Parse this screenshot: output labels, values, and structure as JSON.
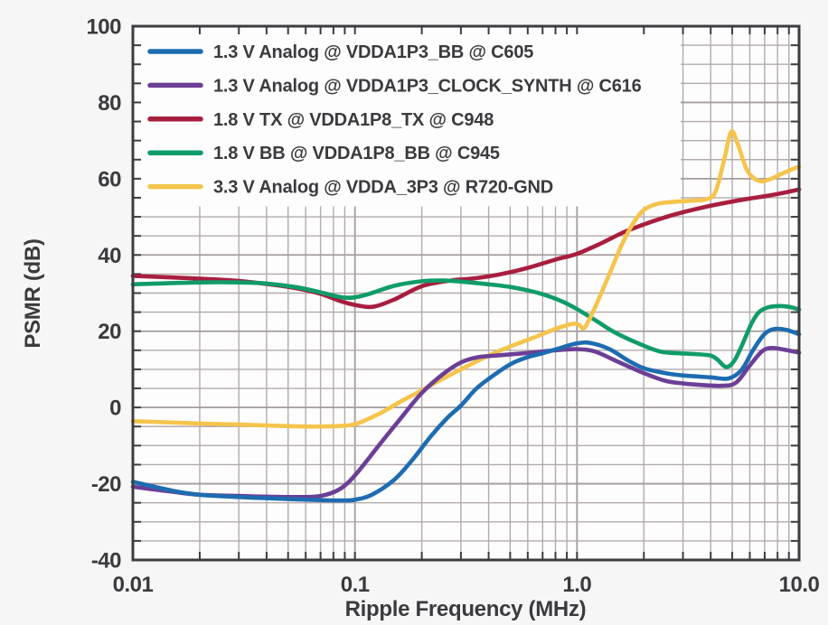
{
  "figure": {
    "background": "#f6f6f6",
    "plot_background": "#fdfdfd",
    "frame_color": "#3d3c40",
    "grid_minor_color": "#b3abab",
    "grid_major_color": "#a49c9c",
    "tick_color": "#3d3c40",
    "text_color": "#3b3a3e"
  },
  "chart_data": {
    "type": "line",
    "title": "",
    "xlabel": "Ripple Frequency (MHz)",
    "ylabel": "PSMR (dB)",
    "x_scale": "log",
    "y_scale": "linear",
    "xlim": [
      0.01,
      10
    ],
    "ylim": [
      -40,
      100
    ],
    "x_ticks": [
      {
        "value": 0.01,
        "label": "0.01"
      },
      {
        "value": 0.1,
        "label": "0.1"
      },
      {
        "value": 1.0,
        "label": "1.0"
      },
      {
        "value": 10.0,
        "label": "10.0"
      }
    ],
    "y_ticks": [
      {
        "value": 100,
        "label": "100"
      },
      {
        "value": 80,
        "label": "80"
      },
      {
        "value": 60,
        "label": "60"
      },
      {
        "value": 40,
        "label": "40"
      },
      {
        "value": 20,
        "label": "20"
      },
      {
        "value": 0,
        "label": "0"
      },
      {
        "value": -20,
        "label": "-20"
      },
      {
        "value": -40,
        "label": "-40"
      }
    ],
    "y_minor_step": 5,
    "grid": "major and minor gridlines, both axes",
    "legend_position": "top-left-inside",
    "series": [
      {
        "key": "vdda1p3_bb",
        "name": "1.3 V Analog @ VDDA1P3_BB @ C605",
        "color": "#1d6cb1",
        "points": [
          [
            0.01,
            -19.5
          ],
          [
            0.015,
            -21.8
          ],
          [
            0.02,
            -22.9
          ],
          [
            0.03,
            -23.5
          ],
          [
            0.04,
            -23.8
          ],
          [
            0.055,
            -24.1
          ],
          [
            0.07,
            -24.3
          ],
          [
            0.085,
            -24.4
          ],
          [
            0.1,
            -24.2
          ],
          [
            0.12,
            -22.8
          ],
          [
            0.15,
            -19.0
          ],
          [
            0.18,
            -14.0
          ],
          [
            0.22,
            -7.5
          ],
          [
            0.26,
            -2.8
          ],
          [
            0.3,
            0.5
          ],
          [
            0.35,
            4.8
          ],
          [
            0.4,
            7.5
          ],
          [
            0.5,
            11.3
          ],
          [
            0.6,
            13.2
          ],
          [
            0.7,
            14.2
          ],
          [
            0.85,
            15.7
          ],
          [
            1.0,
            16.8
          ],
          [
            1.15,
            16.9
          ],
          [
            1.4,
            15.3
          ],
          [
            1.7,
            12.3
          ],
          [
            2.0,
            10.3
          ],
          [
            2.5,
            9.0
          ],
          [
            3.0,
            8.4
          ],
          [
            4.0,
            7.9
          ],
          [
            4.8,
            7.6
          ],
          [
            5.5,
            9.8
          ],
          [
            6.2,
            15.0
          ],
          [
            7.0,
            19.3
          ],
          [
            7.8,
            20.6
          ],
          [
            8.8,
            20.3
          ],
          [
            10,
            19.2
          ]
        ]
      },
      {
        "key": "vdda1p3_clock_synth",
        "name": "1.3 V Analog @ VDDA1P3_CLOCK_SYNTH @ C616",
        "color": "#6c3f97",
        "points": [
          [
            0.01,
            -20.8
          ],
          [
            0.015,
            -22.1
          ],
          [
            0.02,
            -22.9
          ],
          [
            0.03,
            -23.2
          ],
          [
            0.04,
            -23.4
          ],
          [
            0.055,
            -23.5
          ],
          [
            0.07,
            -23.2
          ],
          [
            0.085,
            -21.5
          ],
          [
            0.1,
            -17.8
          ],
          [
            0.13,
            -9.5
          ],
          [
            0.16,
            -3.0
          ],
          [
            0.2,
            3.8
          ],
          [
            0.25,
            8.8
          ],
          [
            0.3,
            11.8
          ],
          [
            0.36,
            13.2
          ],
          [
            0.45,
            13.7
          ],
          [
            0.6,
            14.3
          ],
          [
            0.8,
            15.0
          ],
          [
            1.0,
            15.3
          ],
          [
            1.2,
            14.7
          ],
          [
            1.5,
            12.2
          ],
          [
            2.0,
            9.0
          ],
          [
            2.5,
            7.0
          ],
          [
            3.0,
            6.3
          ],
          [
            3.6,
            5.9
          ],
          [
            4.5,
            5.7
          ],
          [
            5.2,
            6.5
          ],
          [
            6.0,
            11.0
          ],
          [
            6.8,
            14.7
          ],
          [
            7.5,
            15.6
          ],
          [
            8.5,
            15.2
          ],
          [
            10,
            14.4
          ]
        ]
      },
      {
        "key": "vdda1p8_tx",
        "name": "1.8 V TX @ VDDA1P8_TX @ C948",
        "color": "#a81e3f",
        "points": [
          [
            0.01,
            34.5
          ],
          [
            0.02,
            33.8
          ],
          [
            0.03,
            33.2
          ],
          [
            0.04,
            32.4
          ],
          [
            0.055,
            31.2
          ],
          [
            0.07,
            29.8
          ],
          [
            0.085,
            28.0
          ],
          [
            0.1,
            26.9
          ],
          [
            0.12,
            26.4
          ],
          [
            0.15,
            28.3
          ],
          [
            0.2,
            31.8
          ],
          [
            0.27,
            33.3
          ],
          [
            0.35,
            33.9
          ],
          [
            0.45,
            34.9
          ],
          [
            0.6,
            36.6
          ],
          [
            0.8,
            38.8
          ],
          [
            1.0,
            40.3
          ],
          [
            1.3,
            43.2
          ],
          [
            1.6,
            45.8
          ],
          [
            2.0,
            48.0
          ],
          [
            2.5,
            49.9
          ],
          [
            3.0,
            51.2
          ],
          [
            4.0,
            52.9
          ],
          [
            5.0,
            54.0
          ],
          [
            6.0,
            54.8
          ],
          [
            7.0,
            55.4
          ],
          [
            8.0,
            56.0
          ],
          [
            9.0,
            56.6
          ],
          [
            10,
            57.2
          ]
        ]
      },
      {
        "key": "vdda1p8_bb",
        "name": "1.8 V BB @ VDDA1P8_BB @ C945",
        "color": "#109c68",
        "points": [
          [
            0.01,
            32.3
          ],
          [
            0.02,
            32.8
          ],
          [
            0.03,
            32.8
          ],
          [
            0.04,
            32.5
          ],
          [
            0.055,
            31.5
          ],
          [
            0.07,
            30.2
          ],
          [
            0.09,
            28.8
          ],
          [
            0.11,
            29.4
          ],
          [
            0.15,
            31.9
          ],
          [
            0.2,
            33.1
          ],
          [
            0.25,
            33.3
          ],
          [
            0.3,
            33.0
          ],
          [
            0.4,
            32.3
          ],
          [
            0.5,
            31.6
          ],
          [
            0.6,
            30.7
          ],
          [
            0.7,
            29.7
          ],
          [
            0.85,
            27.9
          ],
          [
            1.0,
            25.8
          ],
          [
            1.2,
            23.0
          ],
          [
            1.5,
            19.5
          ],
          [
            2.0,
            16.2
          ],
          [
            2.4,
            14.6
          ],
          [
            2.9,
            14.2
          ],
          [
            3.4,
            14.0
          ],
          [
            4.0,
            13.6
          ],
          [
            4.3,
            12.5
          ],
          [
            4.7,
            10.6
          ],
          [
            5.1,
            12.2
          ],
          [
            5.6,
            17.0
          ],
          [
            6.1,
            22.0
          ],
          [
            6.6,
            25.0
          ],
          [
            7.2,
            26.2
          ],
          [
            8.0,
            26.6
          ],
          [
            9.0,
            26.4
          ],
          [
            10,
            25.7
          ]
        ]
      },
      {
        "key": "vdda_3p3",
        "name": "3.3 V Analog @ VDDA_3P3 @ R720-GND",
        "color": "#f5c44c",
        "points": [
          [
            0.01,
            -3.6
          ],
          [
            0.02,
            -4.2
          ],
          [
            0.03,
            -4.5
          ],
          [
            0.045,
            -4.8
          ],
          [
            0.06,
            -5.0
          ],
          [
            0.08,
            -4.9
          ],
          [
            0.1,
            -4.4
          ],
          [
            0.13,
            -1.5
          ],
          [
            0.16,
            1.5
          ],
          [
            0.2,
            4.5
          ],
          [
            0.25,
            7.6
          ],
          [
            0.3,
            10.0
          ],
          [
            0.4,
            13.6
          ],
          [
            0.5,
            16.0
          ],
          [
            0.65,
            18.5
          ],
          [
            0.8,
            20.6
          ],
          [
            0.95,
            21.9
          ],
          [
            1.02,
            21.7
          ],
          [
            1.08,
            20.9
          ],
          [
            1.2,
            26.0
          ],
          [
            1.4,
            35.0
          ],
          [
            1.6,
            43.0
          ],
          [
            1.8,
            48.5
          ],
          [
            2.0,
            51.8
          ],
          [
            2.3,
            53.4
          ],
          [
            2.7,
            53.9
          ],
          [
            3.2,
            54.2
          ],
          [
            3.8,
            54.6
          ],
          [
            4.2,
            56.5
          ],
          [
            4.6,
            65.0
          ],
          [
            4.95,
            72.3
          ],
          [
            5.3,
            69.0
          ],
          [
            5.8,
            62.5
          ],
          [
            6.3,
            60.0
          ],
          [
            6.8,
            59.3
          ],
          [
            7.5,
            60.0
          ],
          [
            8.5,
            61.5
          ],
          [
            10,
            63.2
          ]
        ]
      }
    ],
    "draw_order": [
      "vdda1p8_tx",
      "vdda1p8_bb",
      "vdda_3p3",
      "vdda1p3_clock_synth",
      "vdda1p3_bb"
    ]
  }
}
